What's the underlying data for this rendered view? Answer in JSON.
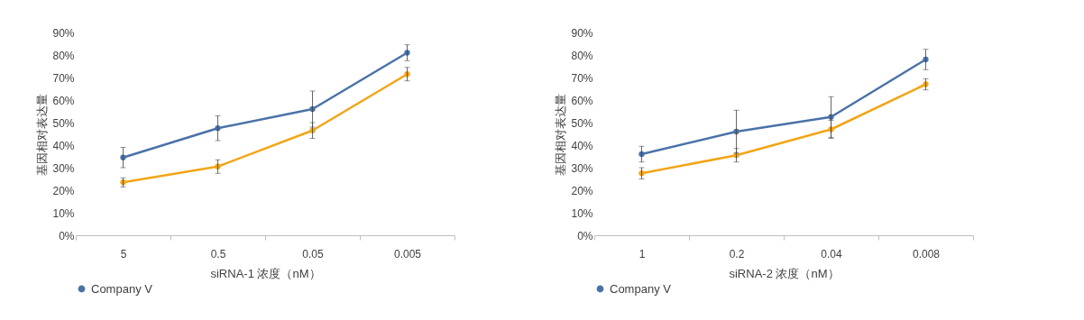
{
  "chart_data": [
    {
      "type": "line",
      "xlabel": "siRNA-1 浓度（nM）",
      "ylabel": "基因相对表达量",
      "categories": [
        "5",
        "0.5",
        "0.05",
        "0.005"
      ],
      "ylim": [
        0,
        90
      ],
      "yticks": [
        {
          "value": 0,
          "label": "0%"
        },
        {
          "value": 10,
          "label": "10%"
        },
        {
          "value": 20,
          "label": "20%"
        },
        {
          "value": 30,
          "label": "30%"
        },
        {
          "value": 40,
          "label": "40%"
        },
        {
          "value": 50,
          "label": "50%"
        },
        {
          "value": 60,
          "label": "60%"
        },
        {
          "value": 70,
          "label": "70%"
        },
        {
          "value": 80,
          "label": "80%"
        },
        {
          "value": 90,
          "label": "90%"
        }
      ],
      "grid": false,
      "legend": "bottom",
      "marker": "circle",
      "series": [
        {
          "color": "#f2a516",
          "values": [
            23.5,
            30.5,
            46.5,
            71.5
          ],
          "errors": [
            2,
            3,
            3.5,
            3
          ]
        },
        {
          "name": "Company V",
          "color": "#4a72a8",
          "values": [
            34.5,
            47.5,
            56,
            81
          ],
          "errors": [
            4.5,
            5.5,
            8,
            3.5
          ]
        }
      ]
    },
    {
      "type": "line",
      "xlabel": "siRNA-2 浓度（nM）",
      "ylabel": "基因相对表达量",
      "categories": [
        "1",
        "0.2",
        "0.04",
        "0.008"
      ],
      "ylim": [
        0,
        90
      ],
      "yticks": [
        {
          "value": 0,
          "label": "0%"
        },
        {
          "value": 10,
          "label": "10%"
        },
        {
          "value": 20,
          "label": "20%"
        },
        {
          "value": 30,
          "label": "30%"
        },
        {
          "value": 40,
          "label": "40%"
        },
        {
          "value": 50,
          "label": "50%"
        },
        {
          "value": 60,
          "label": "60%"
        },
        {
          "value": 70,
          "label": "70%"
        },
        {
          "value": 80,
          "label": "80%"
        },
        {
          "value": 90,
          "label": "90%"
        }
      ],
      "grid": false,
      "legend": "bottom",
      "marker": "circle",
      "series": [
        {
          "color": "#f2a516",
          "values": [
            27.5,
            35.5,
            47,
            67
          ],
          "errors": [
            2.5,
            3,
            4,
            2.5
          ]
        },
        {
          "name": "Company V",
          "color": "#4a72a8",
          "values": [
            36,
            46,
            52.5,
            78
          ],
          "errors": [
            3.5,
            9.5,
            9,
            4.5
          ]
        }
      ]
    }
  ]
}
